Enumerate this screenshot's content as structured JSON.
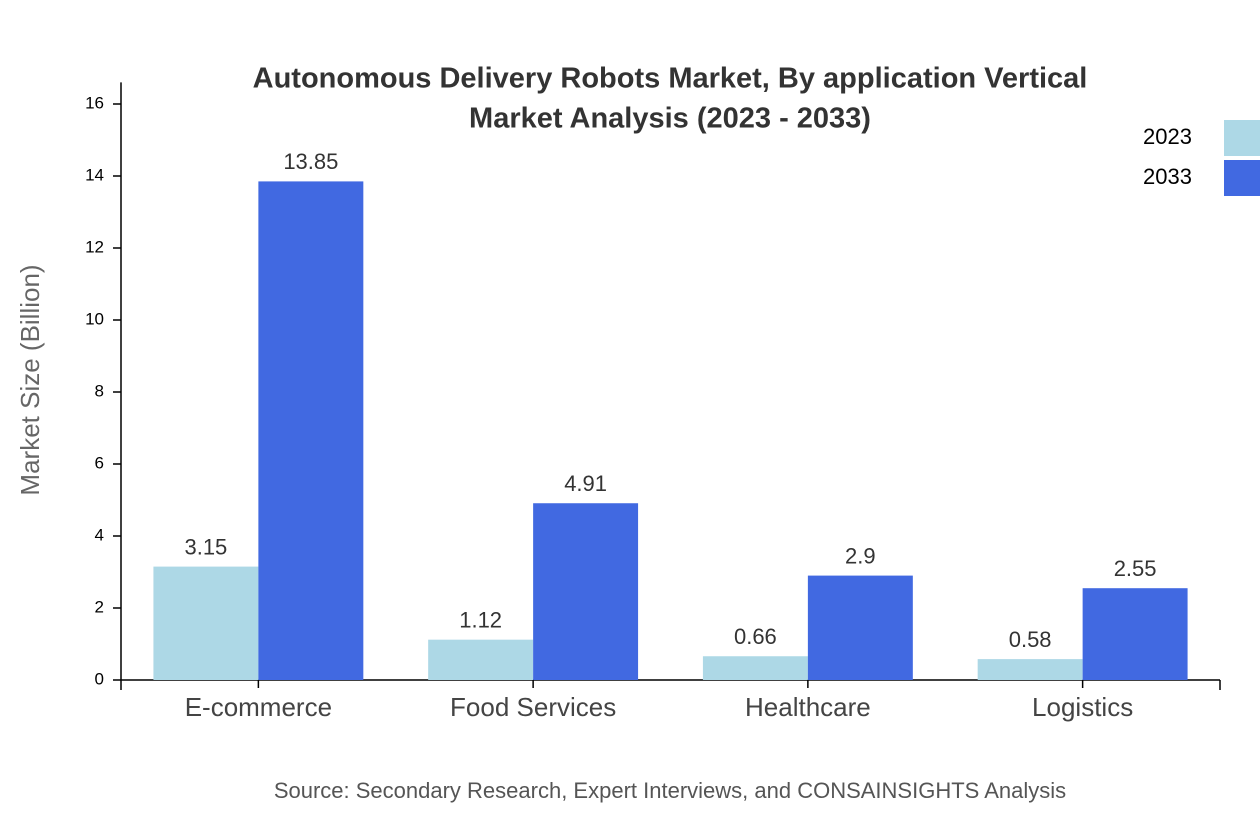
{
  "chart_data": {
    "type": "bar",
    "title": [
      "Autonomous Delivery Robots Market, By application Vertical",
      "Market Analysis (2023 - 2033)"
    ],
    "y_label": "Market Size (Billion)",
    "source": "Source: Secondary Research, Expert Interviews, and CONSAINSIGHTS Analysis",
    "categories": [
      "E-commerce",
      "Food Services",
      "Healthcare",
      "Logistics"
    ],
    "series": [
      {
        "name": "2023",
        "color": "#add8e6",
        "values": [
          3.15,
          1.12,
          0.66,
          0.58
        ]
      },
      {
        "name": "2033",
        "color": "#4169e1",
        "values": [
          13.85,
          4.91,
          2.9,
          2.55
        ]
      }
    ],
    "ylim": [
      0,
      16.6
    ],
    "yticks": [
      0,
      2,
      4,
      6,
      8,
      10,
      12,
      14,
      16
    ],
    "legend": "top-right"
  }
}
